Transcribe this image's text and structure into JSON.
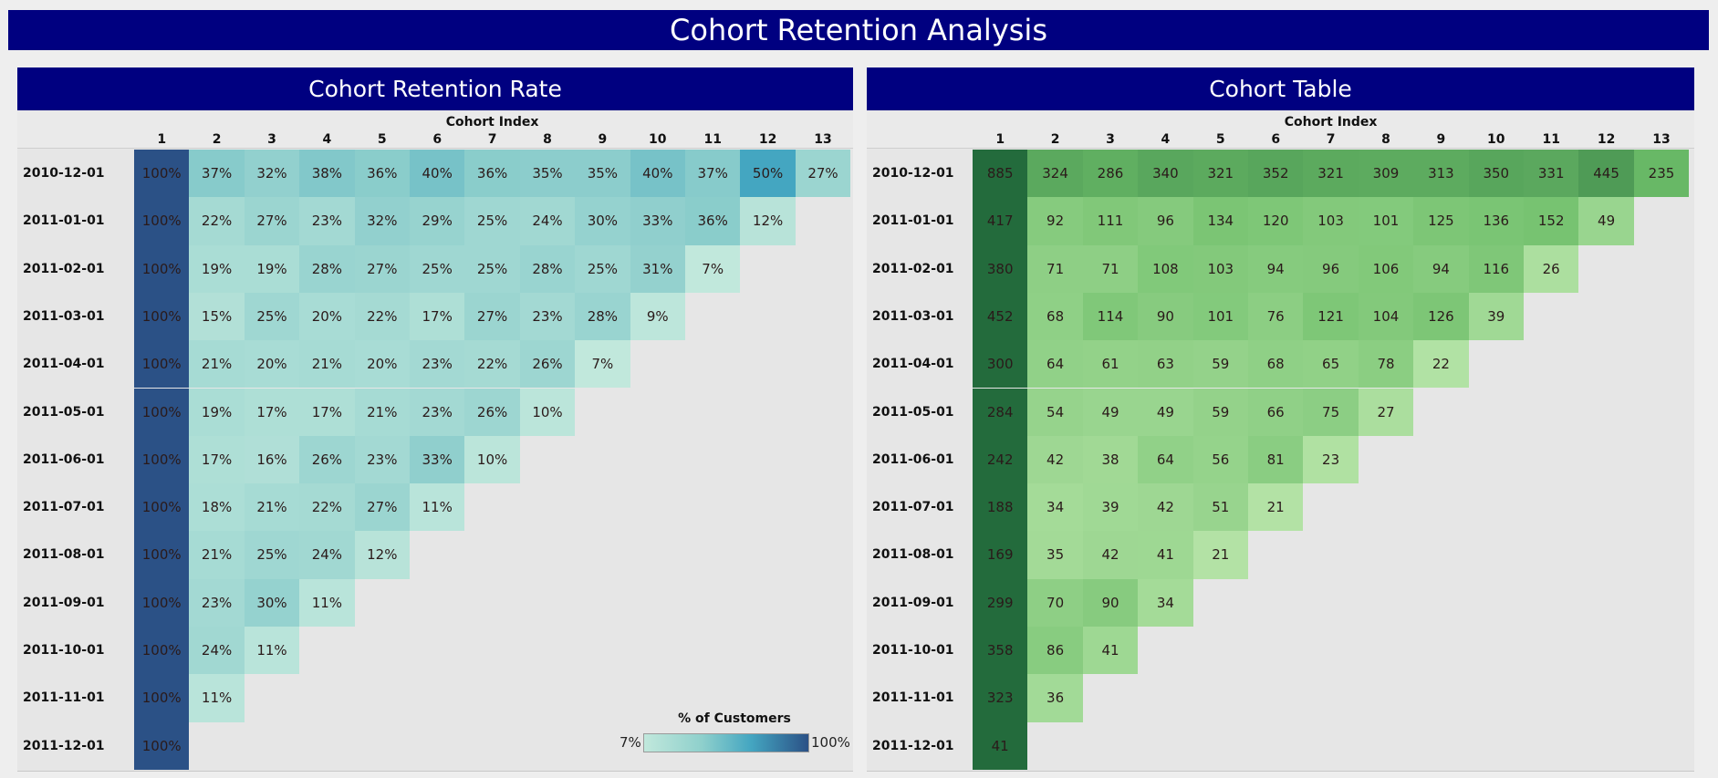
{
  "dashboard": {
    "title": "Cohort Retention Analysis"
  },
  "colors": {
    "title_bg": "#000080",
    "retention_low": "#c1e8dc",
    "retention_mid": "#44a6c1",
    "retention_high": "#2b5186",
    "count_low": "#b4e3a6",
    "count_high": "#236b3c"
  },
  "panels": {
    "retention": {
      "title": "Cohort Retention Rate",
      "axis_title": "Cohort Index",
      "legend": {
        "title": "% of Customers",
        "min_label": "7%",
        "max_label": "100%"
      }
    },
    "counts": {
      "title": "Cohort Table",
      "axis_title": "Cohort Index"
    }
  },
  "chart_data": [
    {
      "type": "heatmap",
      "title": "Cohort Retention Rate",
      "xlabel": "Cohort Index",
      "ylabel": "",
      "x": [
        "1",
        "2",
        "3",
        "4",
        "5",
        "6",
        "7",
        "8",
        "9",
        "10",
        "11",
        "12",
        "13"
      ],
      "y": [
        "2010-12-01",
        "2011-01-01",
        "2011-02-01",
        "2011-03-01",
        "2011-04-01",
        "2011-05-01",
        "2011-06-01",
        "2011-07-01",
        "2011-08-01",
        "2011-09-01",
        "2011-10-01",
        "2011-11-01",
        "2011-12-01"
      ],
      "values": [
        [
          100,
          37,
          32,
          38,
          36,
          40,
          36,
          35,
          35,
          40,
          37,
          50,
          27
        ],
        [
          100,
          22,
          27,
          23,
          32,
          29,
          25,
          24,
          30,
          33,
          36,
          12
        ],
        [
          100,
          19,
          19,
          28,
          27,
          25,
          25,
          28,
          25,
          31,
          7
        ],
        [
          100,
          15,
          25,
          20,
          22,
          17,
          27,
          23,
          28,
          9
        ],
        [
          100,
          21,
          20,
          21,
          20,
          23,
          22,
          26,
          7
        ],
        [
          100,
          19,
          17,
          17,
          21,
          23,
          26,
          10
        ],
        [
          100,
          17,
          16,
          26,
          23,
          33,
          10
        ],
        [
          100,
          18,
          21,
          22,
          27,
          11
        ],
        [
          100,
          21,
          25,
          24,
          12
        ],
        [
          100,
          23,
          30,
          11
        ],
        [
          100,
          24,
          11
        ],
        [
          100,
          11
        ],
        [
          100
        ]
      ],
      "unit": "%",
      "color_range": [
        7,
        100
      ],
      "legend_title": "% of Customers",
      "legend_placement": "bottom-right"
    },
    {
      "type": "heatmap",
      "title": "Cohort Table",
      "xlabel": "Cohort Index",
      "ylabel": "",
      "x": [
        "1",
        "2",
        "3",
        "4",
        "5",
        "6",
        "7",
        "8",
        "9",
        "10",
        "11",
        "12",
        "13"
      ],
      "y": [
        "2010-12-01",
        "2011-01-01",
        "2011-02-01",
        "2011-03-01",
        "2011-04-01",
        "2011-05-01",
        "2011-06-01",
        "2011-07-01",
        "2011-08-01",
        "2011-09-01",
        "2011-10-01",
        "2011-11-01",
        "2011-12-01"
      ],
      "values": [
        [
          885,
          324,
          286,
          340,
          321,
          352,
          321,
          309,
          313,
          350,
          331,
          445,
          235
        ],
        [
          417,
          92,
          111,
          96,
          134,
          120,
          103,
          101,
          125,
          136,
          152,
          49
        ],
        [
          380,
          71,
          71,
          108,
          103,
          94,
          96,
          106,
          94,
          116,
          26
        ],
        [
          452,
          68,
          114,
          90,
          101,
          76,
          121,
          104,
          126,
          39
        ],
        [
          300,
          64,
          61,
          63,
          59,
          68,
          65,
          78,
          22
        ],
        [
          284,
          54,
          49,
          49,
          59,
          66,
          75,
          27
        ],
        [
          242,
          42,
          38,
          64,
          56,
          81,
          23
        ],
        [
          188,
          34,
          39,
          42,
          51,
          21
        ],
        [
          169,
          35,
          42,
          41,
          21
        ],
        [
          299,
          70,
          90,
          34
        ],
        [
          358,
          86,
          41
        ],
        [
          323,
          36
        ],
        [
          41
        ]
      ],
      "unit": ""
    }
  ]
}
